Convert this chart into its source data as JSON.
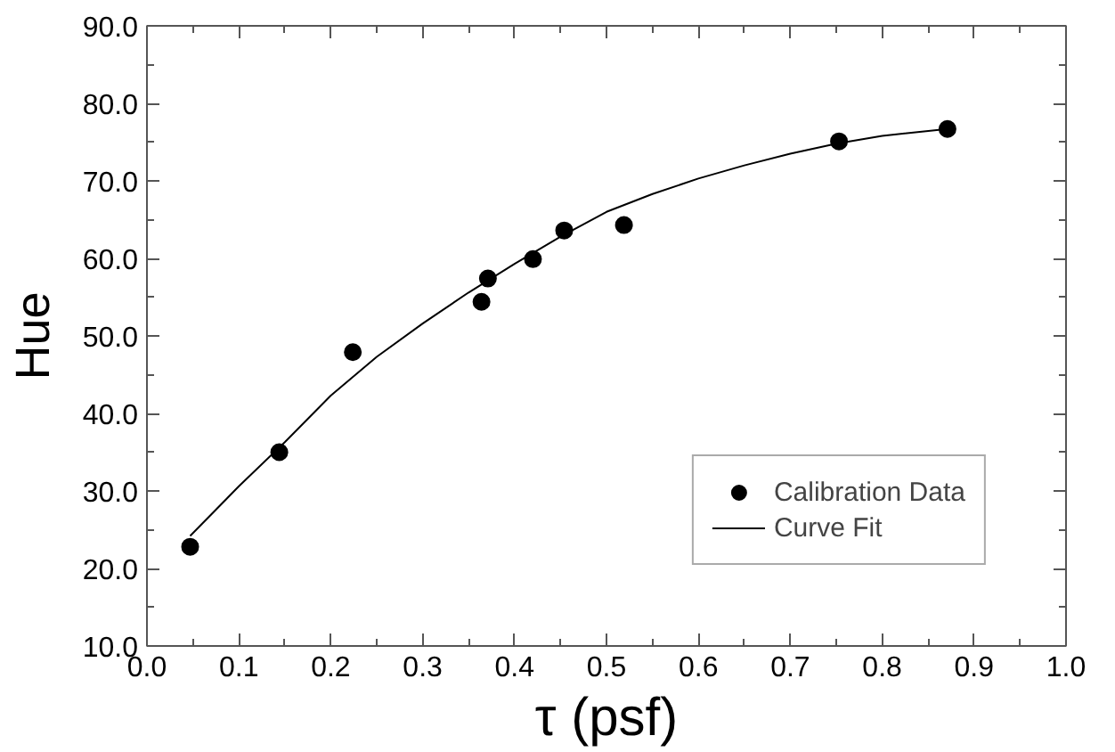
{
  "chart_data": {
    "type": "scatter",
    "xlabel": "τ (psf)",
    "ylabel": "Hue",
    "xlim": [
      0.0,
      1.0
    ],
    "ylim": [
      10.0,
      90.0
    ],
    "xticks": [
      {
        "value": 0.0,
        "label": "0.0"
      },
      {
        "value": 0.1,
        "label": "0.1"
      },
      {
        "value": 0.2,
        "label": "0.2"
      },
      {
        "value": 0.3,
        "label": "0.3"
      },
      {
        "value": 0.4,
        "label": "0.4"
      },
      {
        "value": 0.5,
        "label": "0.5"
      },
      {
        "value": 0.6,
        "label": "0.6"
      },
      {
        "value": 0.7,
        "label": "0.7"
      },
      {
        "value": 0.8,
        "label": "0.8"
      },
      {
        "value": 0.9,
        "label": "0.9"
      },
      {
        "value": 1.0,
        "label": "1.0"
      }
    ],
    "yticks": [
      {
        "value": 10,
        "label": "10.0"
      },
      {
        "value": 20,
        "label": "20.0"
      },
      {
        "value": 30,
        "label": "30.0"
      },
      {
        "value": 40,
        "label": "40.0"
      },
      {
        "value": 50,
        "label": "50.0"
      },
      {
        "value": 60,
        "label": "60.0"
      },
      {
        "value": 70,
        "label": "70.0"
      },
      {
        "value": 80,
        "label": "80.0"
      },
      {
        "value": 90,
        "label": "90.0"
      }
    ],
    "grid": false,
    "legend": "bottom right",
    "series": [
      {
        "name": "Calibration Data",
        "marker": "circle",
        "color": "#000000",
        "x": [
          0.047,
          0.144,
          0.224,
          0.364,
          0.371,
          0.42,
          0.454,
          0.519,
          0.753,
          0.871
        ],
        "values": [
          22.8,
          35.0,
          47.9,
          54.4,
          57.4,
          59.9,
          63.6,
          64.3,
          75.1,
          76.7
        ]
      },
      {
        "name": "Curve Fit",
        "type": "line",
        "marker": "none",
        "line_style": "solid",
        "color": "#000000",
        "x": [
          0.047,
          0.1,
          0.15,
          0.2,
          0.25,
          0.3,
          0.35,
          0.4,
          0.45,
          0.5,
          0.55,
          0.6,
          0.65,
          0.7,
          0.75,
          0.8,
          0.871
        ],
        "values": [
          24.2,
          30.6,
          36.3,
          42.3,
          47.3,
          51.6,
          55.6,
          59.3,
          62.8,
          66.0,
          68.3,
          70.3,
          72.0,
          73.5,
          74.8,
          75.8,
          76.7
        ]
      }
    ]
  }
}
